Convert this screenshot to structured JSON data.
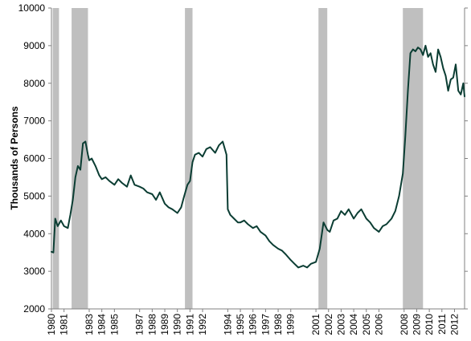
{
  "chart_data": {
    "type": "line",
    "title": "",
    "xlabel": "",
    "ylabel": "Thousands of Persons",
    "ylim": [
      2000,
      10000
    ],
    "xlim": [
      1980.0,
      2012.8
    ],
    "yticks": [
      2000,
      3000,
      4000,
      5000,
      6000,
      7000,
      8000,
      9000,
      10000
    ],
    "ytick_labels": [
      "2000",
      "3000",
      "4000",
      "5000",
      "6000",
      "7000",
      "8000",
      "9000",
      "10000"
    ],
    "xticks": [
      1980,
      1981,
      1983,
      1984,
      1985,
      1987,
      1988,
      1989,
      1990,
      1991,
      1992,
      1994,
      1995,
      1996,
      1997,
      1998,
      1999,
      2001,
      2002,
      2003,
      2004,
      2005,
      2006,
      2008,
      2009,
      2010,
      2011,
      2012
    ],
    "xtick_labels": [
      "1980",
      "1981",
      "1983",
      "1984",
      "1985",
      "1987",
      "1988",
      "1989",
      "1990",
      "1991",
      "1992",
      "1994",
      "1995",
      "1996",
      "1997",
      "1998",
      "1999",
      "2001",
      "2002",
      "2003",
      "2004",
      "2005",
      "2006",
      "2008",
      "2009",
      "2010",
      "2011",
      "2012"
    ],
    "grid": false,
    "legend": "none",
    "colors": {
      "line": "#0b3d33",
      "recession": "#bfbfbf",
      "axis": "#808080"
    },
    "recessions": [
      {
        "start": 1980.1,
        "end": 1980.6
      },
      {
        "start": 1981.6,
        "end": 1982.9
      },
      {
        "start": 1990.6,
        "end": 1991.2
      },
      {
        "start": 2001.2,
        "end": 2001.9
      },
      {
        "start": 2007.9,
        "end": 2009.5
      }
    ],
    "series": [
      {
        "name": "",
        "x": [
          1980.0,
          1980.15,
          1980.3,
          1980.5,
          1980.75,
          1981.0,
          1981.3,
          1981.5,
          1981.7,
          1981.9,
          1982.1,
          1982.3,
          1982.5,
          1982.7,
          1982.9,
          1983.0,
          1983.2,
          1983.5,
          1983.8,
          1984.0,
          1984.3,
          1984.6,
          1985.0,
          1985.3,
          1985.6,
          1986.0,
          1986.3,
          1986.6,
          1987.0,
          1987.3,
          1987.6,
          1988.0,
          1988.3,
          1988.6,
          1989.0,
          1989.3,
          1989.6,
          1990.0,
          1990.3,
          1990.5,
          1990.8,
          1991.0,
          1991.2,
          1991.4,
          1991.7,
          1992.0,
          1992.3,
          1992.6,
          1993.0,
          1993.3,
          1993.6,
          1993.9,
          1994.0,
          1994.2,
          1994.5,
          1994.8,
          1995.0,
          1995.3,
          1995.6,
          1996.0,
          1996.3,
          1996.6,
          1997.0,
          1997.3,
          1997.6,
          1998.0,
          1998.3,
          1998.6,
          1999.0,
          1999.3,
          1999.6,
          2000.0,
          2000.3,
          2000.6,
          2001.0,
          2001.3,
          2001.6,
          2001.9,
          2002.1,
          2002.4,
          2002.7,
          2003.0,
          2003.3,
          2003.6,
          2004.0,
          2004.3,
          2004.6,
          2005.0,
          2005.3,
          2005.6,
          2006.0,
          2006.3,
          2006.6,
          2007.0,
          2007.3,
          2007.6,
          2007.9,
          2008.1,
          2008.3,
          2008.5,
          2008.7,
          2008.9,
          2009.1,
          2009.3,
          2009.5,
          2009.7,
          2009.9,
          2010.1,
          2010.3,
          2010.5,
          2010.7,
          2010.9,
          2011.1,
          2011.3,
          2011.5,
          2011.7,
          2011.9,
          2012.1,
          2012.3,
          2012.5,
          2012.7,
          2012.8
        ],
        "values": [
          3520,
          3500,
          4400,
          4200,
          4350,
          4200,
          4150,
          4500,
          4900,
          5500,
          5800,
          5700,
          6400,
          6450,
          6100,
          5950,
          6000,
          5800,
          5550,
          5450,
          5500,
          5400,
          5300,
          5450,
          5350,
          5250,
          5550,
          5300,
          5250,
          5200,
          5100,
          5050,
          4900,
          5100,
          4800,
          4700,
          4650,
          4550,
          4700,
          4950,
          5300,
          5400,
          5900,
          6100,
          6150,
          6050,
          6250,
          6300,
          6150,
          6350,
          6450,
          6100,
          4650,
          4500,
          4400,
          4300,
          4300,
          4350,
          4250,
          4150,
          4200,
          4050,
          3950,
          3800,
          3700,
          3600,
          3550,
          3450,
          3300,
          3200,
          3100,
          3150,
          3100,
          3200,
          3250,
          3600,
          4300,
          4100,
          4050,
          4350,
          4400,
          4600,
          4500,
          4650,
          4400,
          4550,
          4650,
          4400,
          4300,
          4150,
          4050,
          4200,
          4250,
          4400,
          4600,
          5000,
          5600,
          6600,
          7800,
          8800,
          8900,
          8850,
          8950,
          8900,
          8750,
          9000,
          8700,
          8800,
          8500,
          8300,
          8900,
          8700,
          8400,
          8200,
          7800,
          8100,
          8150,
          8500,
          7800,
          7700,
          8000,
          7650
        ]
      }
    ]
  }
}
